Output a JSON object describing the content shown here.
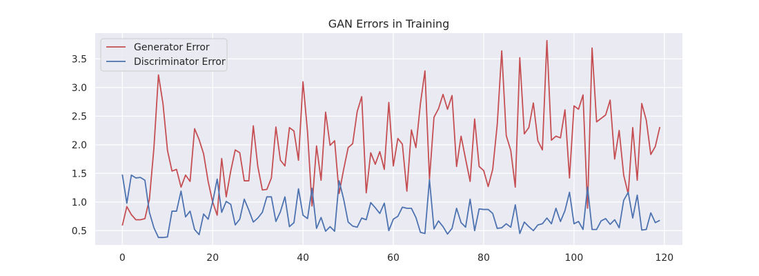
{
  "chart_data": {
    "type": "line",
    "title": "GAN Errors in Training",
    "xlabel": "",
    "ylabel": "",
    "xlim": [
      -6,
      124
    ],
    "ylim": [
      0.25,
      3.95
    ],
    "x_ticks": [
      0,
      20,
      40,
      60,
      80,
      100,
      120
    ],
    "y_ticks": [
      0.5,
      1.0,
      1.5,
      2.0,
      2.5,
      3.0,
      3.5
    ],
    "grid": true,
    "legend_position": "top-left",
    "background_color": "#eaeaf2",
    "series": [
      {
        "name": "Generator Error",
        "color": "#c44e52",
        "values": [
          0.59,
          0.92,
          0.78,
          0.69,
          0.69,
          0.71,
          1.05,
          1.95,
          3.22,
          2.72,
          1.9,
          1.54,
          1.57,
          1.26,
          1.47,
          1.36,
          2.28,
          2.09,
          1.84,
          1.36,
          1.0,
          0.77,
          1.76,
          1.09,
          1.54,
          1.91,
          1.86,
          1.37,
          1.37,
          2.33,
          1.62,
          1.21,
          1.22,
          1.42,
          2.31,
          1.73,
          1.63,
          2.3,
          2.24,
          1.73,
          3.1,
          2.23,
          0.93,
          1.98,
          1.38,
          2.57,
          1.99,
          2.07,
          1.15,
          1.57,
          1.95,
          2.02,
          2.58,
          2.84,
          1.16,
          1.86,
          1.66,
          1.88,
          1.57,
          2.74,
          1.63,
          2.11,
          2.01,
          1.19,
          2.26,
          1.95,
          2.72,
          3.29,
          1.4,
          2.48,
          2.63,
          2.88,
          2.62,
          2.86,
          1.62,
          2.15,
          1.75,
          1.36,
          2.45,
          1.62,
          1.55,
          1.27,
          1.57,
          2.35,
          3.64,
          2.16,
          1.9,
          1.26,
          3.52,
          2.19,
          2.3,
          2.73,
          2.07,
          1.91,
          3.82,
          2.08,
          2.15,
          2.12,
          2.61,
          1.42,
          2.68,
          2.62,
          2.87,
          0.89,
          3.69,
          2.4,
          2.46,
          2.52,
          2.78,
          1.75,
          2.25,
          1.47,
          1.14,
          2.3,
          1.38,
          2.72,
          2.43,
          1.83,
          1.97,
          2.31
        ]
      },
      {
        "name": "Discriminator Error",
        "color": "#4c72b0",
        "values": [
          1.48,
          0.98,
          1.47,
          1.42,
          1.43,
          1.38,
          0.82,
          0.55,
          0.38,
          0.38,
          0.39,
          0.84,
          0.84,
          1.19,
          0.74,
          0.84,
          0.52,
          0.43,
          0.79,
          0.7,
          1.0,
          1.4,
          0.82,
          1.01,
          0.96,
          0.6,
          0.7,
          1.05,
          0.86,
          0.65,
          0.72,
          0.82,
          1.09,
          1.09,
          0.66,
          0.83,
          1.09,
          0.57,
          0.64,
          1.23,
          0.77,
          0.71,
          1.24,
          0.54,
          0.73,
          0.49,
          0.57,
          0.49,
          1.37,
          1.05,
          0.65,
          0.58,
          0.56,
          0.72,
          0.69,
          0.99,
          0.9,
          0.8,
          0.98,
          0.5,
          0.7,
          0.75,
          0.91,
          0.89,
          0.89,
          0.73,
          0.47,
          0.45,
          1.39,
          0.53,
          0.67,
          0.57,
          0.44,
          0.54,
          0.89,
          0.64,
          0.56,
          1.05,
          0.5,
          0.88,
          0.87,
          0.87,
          0.8,
          0.54,
          0.55,
          0.62,
          0.56,
          0.95,
          0.45,
          0.65,
          0.57,
          0.5,
          0.6,
          0.62,
          0.72,
          0.62,
          0.89,
          0.66,
          0.85,
          1.17,
          0.62,
          0.66,
          0.52,
          1.26,
          0.52,
          0.52,
          0.67,
          0.71,
          0.61,
          0.69,
          0.55,
          1.03,
          1.17,
          0.72,
          1.12,
          0.51,
          0.52,
          0.81,
          0.64,
          0.68
        ]
      }
    ]
  }
}
